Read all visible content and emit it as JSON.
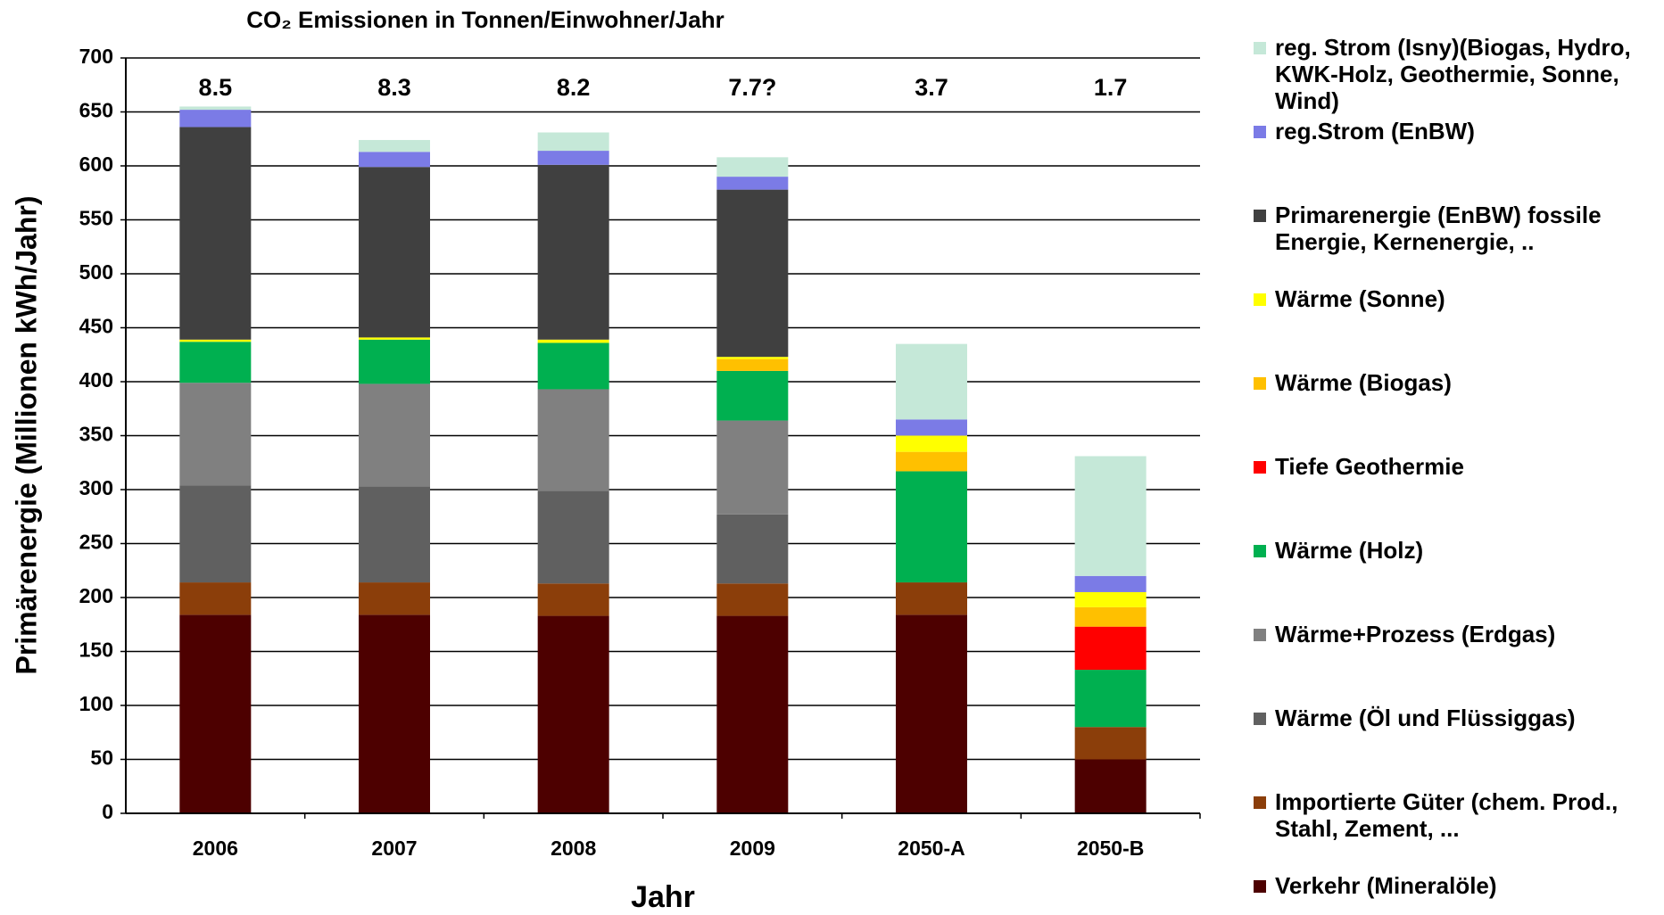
{
  "chart_data": {
    "type": "stacked_bar",
    "title": "CO₂ Emissionen in Tonnen/Einwohner/Jahr",
    "x_label": "Jahr",
    "y_label": "Primärenergie (Millionen kWh/Jahr)",
    "categories": [
      "2006",
      "2007",
      "2008",
      "2009",
      "2050-A",
      "2050-B"
    ],
    "bar_labels": [
      "8.5",
      "8.3",
      "8.2",
      "7.7?",
      "3.7",
      "1.7"
    ],
    "ylim": [
      0,
      700
    ],
    "yticks": [
      0,
      50,
      100,
      150,
      200,
      250,
      300,
      350,
      400,
      450,
      500,
      550,
      600,
      650,
      700
    ],
    "grid": true,
    "legend": "right",
    "series": [
      {
        "name": "Verkehr (Mineralöle)",
        "color": "#4d0000",
        "values": [
          184,
          184,
          183,
          183,
          184,
          50
        ]
      },
      {
        "name": "Importierte Güter (chem. Prod., Stahl, Zement, ...",
        "color": "#8b3e0a",
        "values": [
          30,
          30,
          30,
          30,
          30,
          30
        ]
      },
      {
        "name": "Wärme (Öl und Flüssiggas)",
        "color": "#606060",
        "values": [
          90,
          89,
          86,
          64,
          0,
          0
        ]
      },
      {
        "name": "Wärme+Prozess (Erdgas)",
        "color": "#808080",
        "values": [
          95,
          95,
          94,
          87,
          0,
          0
        ]
      },
      {
        "name": "Wärme (Holz)",
        "color": "#00b050",
        "values": [
          38,
          41,
          43,
          46,
          103,
          53
        ]
      },
      {
        "name": "Tiefe Geothermie",
        "color": "#ff0000",
        "values": [
          0,
          0,
          0,
          0,
          0,
          40
        ]
      },
      {
        "name": "Wärme (Biogas)",
        "color": "#ffc000",
        "values": [
          0,
          0,
          0,
          11,
          18,
          18
        ]
      },
      {
        "name": "Wärme (Sonne)",
        "color": "#ffff00",
        "values": [
          2,
          2,
          3,
          2,
          15,
          14
        ]
      },
      {
        "name": "Primarenergie (EnBW) fossile Energie, Kernenergie, ..",
        "color": "#404040",
        "values": [
          197,
          158,
          162,
          155,
          0,
          0
        ]
      },
      {
        "name": "reg.Strom (EnBW)",
        "color": "#7b7be6",
        "values": [
          16,
          14,
          13,
          12,
          15,
          15
        ]
      },
      {
        "name": "reg. Strom (Isny)(Biogas, Hydro, KWK-Holz, Geothermie, Sonne, Wind)",
        "color": "#c5e8d8",
        "values": [
          3,
          11,
          17,
          18,
          70,
          111
        ]
      }
    ]
  }
}
